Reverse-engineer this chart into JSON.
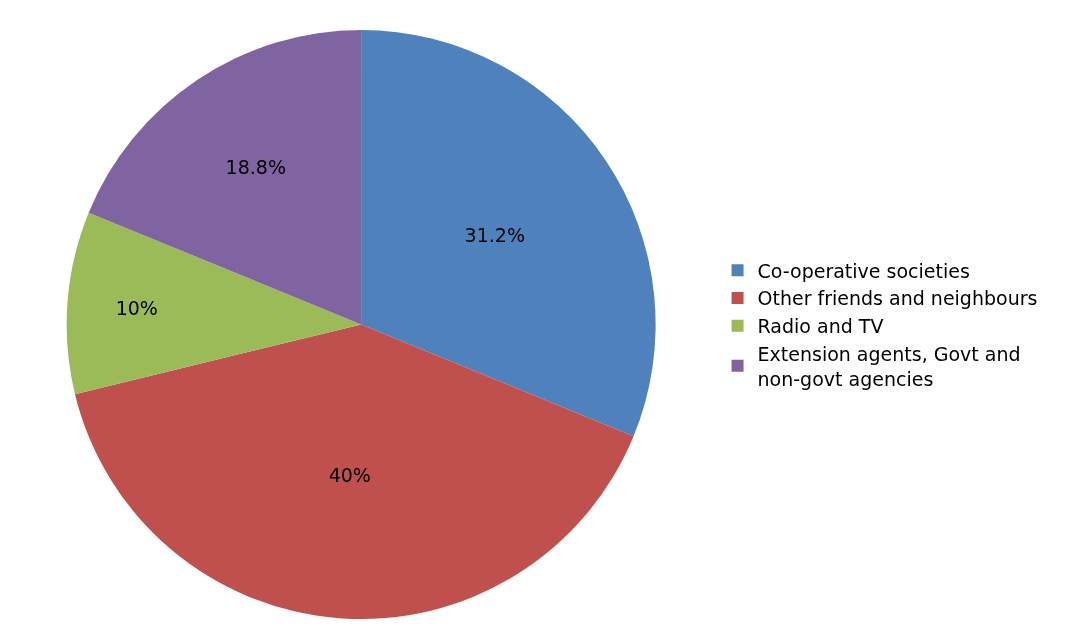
{
  "chart_data": {
    "type": "pie",
    "categories": [
      "Co-operative societies",
      "Other friends and neighbours",
      "Radio and TV",
      "Extension agents, Govt and non-govt agencies"
    ],
    "values": [
      31.2,
      40,
      10,
      18.8
    ],
    "value_labels": [
      "31.2%",
      "40%",
      "10%",
      "18.8%"
    ],
    "colors": [
      "#4f81bd",
      "#c0504d",
      "#9bbb59",
      "#8064a2"
    ],
    "legend": "right"
  }
}
